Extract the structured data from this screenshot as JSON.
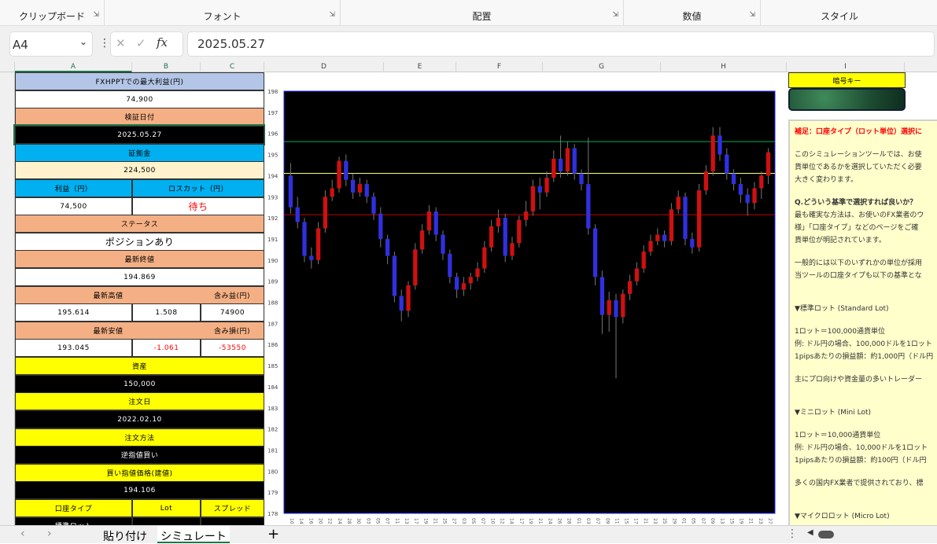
{
  "ribbon": {
    "groups": [
      "クリップボード",
      "フォント",
      "配置",
      "数値",
      "スタイル"
    ]
  },
  "formula_bar": {
    "name_box": "A4",
    "fx": "fx",
    "value": "2025.05.27"
  },
  "columns": [
    "A",
    "B",
    "C",
    "D",
    "E",
    "F",
    "G",
    "H",
    "I"
  ],
  "sheet": {
    "max_profit_label": "FXHPPTでの最大利益(円)",
    "max_profit_value": "74,900",
    "verify_date_label": "検証日付",
    "verify_date_value": "2025.05.27",
    "margin_label": "証拠金",
    "margin_value": "224,500",
    "profit_label": "利益（円）",
    "losscut_label": "ロスカット（円）",
    "profit_value": "74,500",
    "losscut_value": "待ち",
    "status_label": "ステータス",
    "status_value": "ポジションあり",
    "last_close_label": "最新終値",
    "last_close_value": "194.869",
    "last_high_label": "最新高値",
    "unrealized_gain_label": "含み益(円)",
    "last_high_value": "195.614",
    "high_diff": "1.508",
    "unrealized_gain": "74900",
    "last_low_label": "最新安値",
    "unrealized_loss_label": "含み損(円)",
    "last_low_value": "193.045",
    "low_diff": "-1.061",
    "unrealized_loss": "-53550",
    "assets_label": "資産",
    "assets_value": "150,000",
    "order_date_label": "注文日",
    "order_date_value": "2022.02.10",
    "order_method_label": "注文方法",
    "order_method_value": "逆指値買い",
    "buy_price_label": "買い指値価格(建値)",
    "buy_price_value": "194.106",
    "account_type_label": "口座タイプ",
    "lot_label": "Lot",
    "spread_label": "スプレッド",
    "account_type_value": "標準ロット"
  },
  "key_box": {
    "label": "暗号キー"
  },
  "note": {
    "title": "補足：口座タイプ（ロット単位）選択に",
    "lines": [
      "",
      "このシミュレーションツールでは、お使",
      "貨単位であるかを選択していただく必要",
      "大きく変わります。",
      "",
      "Q.どういう基準で選択すれば良いか？",
      "最も確実な方法は、お使いのFX業者のウ",
      "様」「口座タイプ」などのページをご確",
      "貨単位が明記されています。",
      "",
      "一般的には以下のいずれかの単位が採用",
      "当ツールの口座タイプも以下の基準とな",
      "",
      "",
      "▼標準ロット (Standard Lot)",
      "",
      "1ロット＝100,000通貨単位",
      "例: ドル円の場合、100,000ドルを1ロット",
      "1pipsあたりの損益額：約1,000円（ドル円",
      "",
      "主にプロ向けや資金量の多いトレーダー",
      "",
      "",
      "▼ミニロット (Mini Lot)",
      "",
      "1ロット＝10,000通貨単位",
      "例: ドル円の場合、10,000ドルを1ロット",
      "1pipsあたりの損益額：約100円（ドル円",
      "",
      "多くの国内FX業者で提供されており、標",
      "",
      "",
      "▼マイクロロット (Micro Lot)"
    ]
  },
  "tabs": {
    "items": [
      "貼り付け",
      "シミュレート"
    ],
    "active": 1,
    "add": "+"
  },
  "chart_data": {
    "type": "candlestick",
    "ylim": [
      178,
      198
    ],
    "yticks": [
      178,
      179,
      180,
      181,
      182,
      183,
      184,
      185,
      186,
      187,
      188,
      189,
      190,
      191,
      192,
      193,
      194,
      195,
      196,
      197,
      198
    ],
    "xtick_labels": [
      "10",
      "14",
      "16",
      "20",
      "22",
      "24",
      "28",
      "30",
      "03",
      "05",
      "07",
      "11",
      "13",
      "17",
      "19",
      "21",
      "25",
      "27",
      "03",
      "05",
      "07",
      "10",
      "12",
      "14",
      "17",
      "19",
      "21",
      "24",
      "26",
      "28",
      "01",
      "03",
      "07",
      "09",
      "11",
      "15",
      "17",
      "21",
      "23",
      "25",
      "29",
      "01",
      "05",
      "07",
      "09",
      "13",
      "15",
      "19",
      "21",
      "23",
      "27"
    ],
    "hlines": [
      {
        "value": 195.614,
        "color": "#00b050"
      },
      {
        "value": 194.106,
        "color": "#ffff66"
      },
      {
        "value": 192.15,
        "color": "#c00000"
      }
    ],
    "up_color": "#d01010",
    "down_color": "#3030e0",
    "background": "#000000",
    "border_color": "#2020ff",
    "ohlc": [
      [
        194.0,
        194.6,
        192.2,
        192.5
      ],
      [
        192.5,
        193.0,
        191.5,
        191.8
      ],
      [
        191.8,
        192.0,
        189.9,
        190.2
      ],
      [
        190.2,
        190.6,
        189.6,
        190.0
      ],
      [
        190.0,
        191.8,
        189.8,
        191.5
      ],
      [
        191.5,
        193.3,
        191.3,
        193.0
      ],
      [
        193.0,
        193.8,
        192.8,
        193.4
      ],
      [
        193.4,
        194.9,
        193.2,
        194.7
      ],
      [
        194.7,
        195.0,
        193.5,
        193.8
      ],
      [
        193.8,
        194.1,
        192.9,
        193.2
      ],
      [
        193.2,
        193.9,
        193.0,
        193.6
      ],
      [
        193.6,
        193.8,
        192.7,
        193.0
      ],
      [
        193.0,
        193.2,
        191.9,
        192.2
      ],
      [
        192.2,
        192.5,
        190.6,
        191.0
      ],
      [
        191.0,
        191.2,
        189.8,
        190.2
      ],
      [
        190.2,
        190.4,
        188.0,
        188.3
      ],
      [
        188.3,
        188.6,
        187.1,
        187.6
      ],
      [
        187.6,
        189.0,
        187.3,
        188.8
      ],
      [
        188.8,
        190.8,
        188.6,
        190.5
      ],
      [
        190.5,
        191.7,
        190.3,
        191.4
      ],
      [
        191.4,
        192.6,
        191.2,
        192.3
      ],
      [
        192.3,
        192.5,
        190.9,
        191.2
      ],
      [
        191.2,
        191.4,
        190.0,
        190.3
      ],
      [
        190.3,
        190.5,
        188.9,
        189.2
      ],
      [
        189.2,
        189.4,
        188.2,
        188.6
      ],
      [
        188.6,
        189.2,
        188.3,
        188.9
      ],
      [
        188.9,
        189.4,
        188.6,
        189.2
      ],
      [
        189.2,
        189.9,
        189.0,
        189.6
      ],
      [
        189.6,
        190.9,
        189.4,
        190.6
      ],
      [
        190.6,
        191.9,
        190.4,
        191.6
      ],
      [
        191.6,
        192.4,
        191.3,
        192.0
      ],
      [
        192.0,
        192.2,
        189.9,
        190.2
      ],
      [
        190.2,
        191.1,
        190.0,
        190.8
      ],
      [
        190.8,
        192.1,
        190.6,
        191.9
      ],
      [
        191.9,
        192.8,
        191.6,
        192.3
      ],
      [
        192.3,
        193.8,
        192.1,
        193.5
      ],
      [
        193.5,
        193.9,
        192.4,
        193.2
      ],
      [
        193.2,
        194.2,
        193.0,
        193.9
      ],
      [
        193.9,
        195.2,
        193.7,
        194.8
      ],
      [
        194.8,
        195.9,
        193.9,
        194.2
      ],
      [
        194.2,
        195.6,
        194.0,
        195.3
      ],
      [
        195.3,
        195.5,
        193.8,
        194.1
      ],
      [
        194.1,
        194.3,
        193.3,
        193.6
      ],
      [
        193.6,
        195.8,
        191.2,
        191.5
      ],
      [
        191.5,
        191.7,
        188.8,
        189.2
      ],
      [
        189.2,
        189.5,
        186.5,
        187.4
      ],
      [
        187.4,
        188.5,
        186.6,
        188.1
      ],
      [
        188.1,
        188.4,
        184.4,
        187.3
      ],
      [
        187.3,
        188.6,
        187.0,
        188.4
      ],
      [
        188.4,
        189.3,
        188.1,
        189.0
      ],
      [
        189.0,
        189.9,
        188.8,
        189.6
      ],
      [
        189.6,
        190.7,
        189.4,
        190.4
      ],
      [
        190.4,
        191.2,
        190.2,
        190.9
      ],
      [
        190.9,
        191.5,
        190.7,
        191.2
      ],
      [
        191.2,
        191.4,
        190.6,
        190.9
      ],
      [
        190.9,
        192.7,
        190.7,
        192.4
      ],
      [
        192.4,
        193.3,
        192.2,
        193.0
      ],
      [
        193.0,
        193.2,
        190.7,
        191.0
      ],
      [
        191.0,
        191.3,
        190.3,
        190.6
      ],
      [
        190.6,
        193.6,
        190.4,
        193.3
      ],
      [
        193.3,
        194.5,
        193.1,
        194.2
      ],
      [
        194.2,
        196.3,
        194.0,
        195.9
      ],
      [
        195.9,
        196.3,
        194.7,
        195.0
      ],
      [
        195.0,
        195.3,
        193.8,
        194.1
      ],
      [
        194.1,
        194.3,
        193.3,
        193.6
      ],
      [
        193.6,
        193.9,
        192.7,
        193.1
      ],
      [
        193.1,
        193.4,
        192.1,
        192.7
      ],
      [
        192.7,
        193.7,
        192.4,
        193.4
      ],
      [
        193.4,
        194.2,
        192.9,
        194.0
      ],
      [
        194.0,
        195.3,
        193.6,
        195.1
      ]
    ]
  }
}
